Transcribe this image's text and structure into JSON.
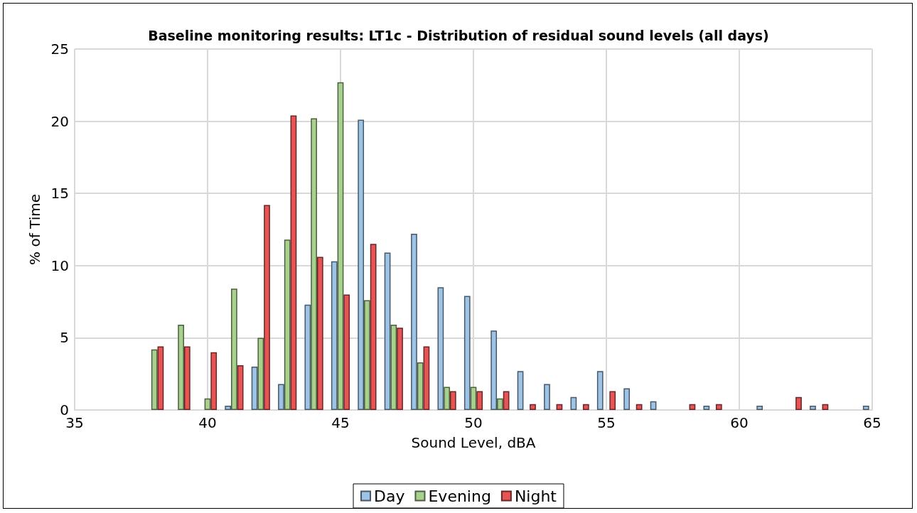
{
  "chart_data": {
    "type": "bar",
    "title": "Baseline monitoring results: LT1c - Distribution of residual sound levels (all days)",
    "xlabel": "Sound Level, dBA",
    "ylabel": "% of Time",
    "x": [
      38,
      39,
      40,
      41,
      42,
      43,
      44,
      45,
      46,
      47,
      48,
      49,
      50,
      51,
      52,
      53,
      54,
      55,
      56,
      57,
      58,
      59,
      60,
      61,
      62,
      63,
      64,
      65
    ],
    "series": [
      {
        "name": "Day",
        "color": "#9dc3e6",
        "values": [
          null,
          null,
          null,
          0.3,
          3.0,
          1.8,
          7.3,
          10.3,
          20.1,
          10.9,
          12.2,
          8.5,
          7.9,
          5.5,
          2.7,
          1.8,
          0.9,
          2.7,
          1.5,
          0.6,
          null,
          0.3,
          null,
          0.3,
          null,
          0.3,
          null,
          0.3
        ]
      },
      {
        "name": "Evening",
        "color": "#a9d18e",
        "values": [
          4.2,
          5.9,
          0.8,
          8.4,
          5.0,
          11.8,
          20.2,
          22.7,
          7.6,
          5.9,
          3.3,
          1.6,
          1.6,
          0.8,
          null,
          null,
          null,
          null,
          null,
          null,
          null,
          null,
          null,
          null,
          null,
          null,
          null,
          null
        ]
      },
      {
        "name": "Night",
        "color": "#e85454",
        "values": [
          4.4,
          4.4,
          4.0,
          3.1,
          14.2,
          20.4,
          10.6,
          8.0,
          11.5,
          5.7,
          4.4,
          1.3,
          1.3,
          1.3,
          0.4,
          0.4,
          0.4,
          1.3,
          0.4,
          null,
          0.4,
          0.4,
          null,
          null,
          0.9,
          0.4,
          null,
          null
        ]
      }
    ],
    "xlim": [
      35,
      65
    ],
    "xticks": [
      35,
      40,
      45,
      50,
      55,
      60,
      65
    ],
    "ylim": [
      0,
      25
    ],
    "yticks": [
      0,
      5,
      10,
      15,
      20,
      25
    ],
    "grid": true,
    "legend": "bottom"
  }
}
